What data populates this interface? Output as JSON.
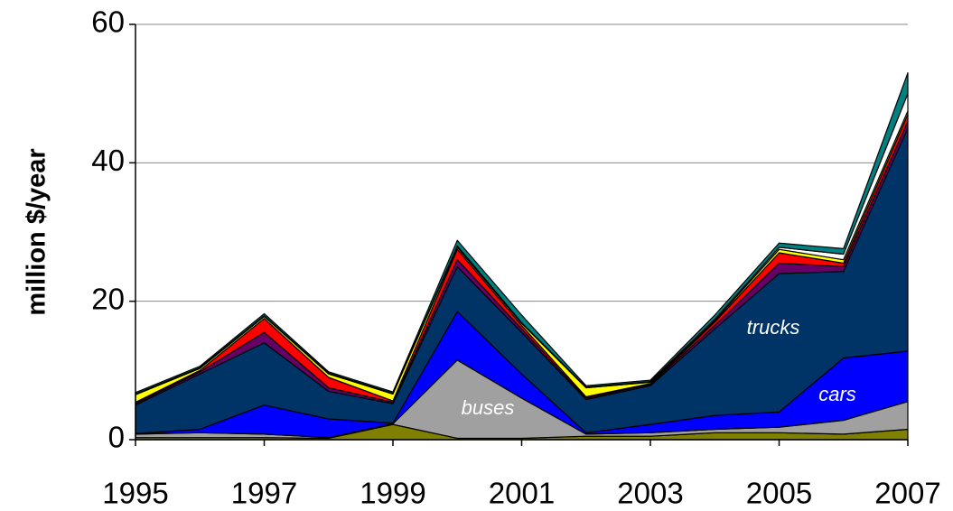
{
  "chart_data": {
    "type": "stacked_area",
    "y_label": "million $/year",
    "x": [
      1995,
      1996,
      1997,
      1998,
      1999,
      2000,
      2001,
      2002,
      2003,
      2004,
      2005,
      2006,
      2007
    ],
    "xlim": [
      1995,
      2007
    ],
    "xticks": [
      1995,
      1997,
      1999,
      2001,
      2003,
      2005,
      2007
    ],
    "ylim": [
      0,
      60
    ],
    "yticks": [
      0,
      20,
      40,
      60
    ],
    "grid": true,
    "series": [
      {
        "color": "#808000",
        "values": [
          0.3,
          0.3,
          0.3,
          0.2,
          2.2,
          0.2,
          0.2,
          0.5,
          0.5,
          1,
          1,
          0.8,
          1.5
        ]
      },
      {
        "name": "buses",
        "color": "#a0a0a0",
        "values": [
          0.5,
          0.7,
          0.5,
          0.1,
          0.1,
          11.3,
          5.8,
          0.3,
          0.5,
          0.5,
          0.8,
          2.0,
          4.0
        ]
      },
      {
        "name": "cars",
        "color": "#0000ff",
        "values": [
          0.1,
          0.5,
          4.2,
          2.7,
          0.1,
          7,
          3.5,
          0.2,
          1.2,
          2,
          2.2,
          9,
          7.3
        ]
      },
      {
        "name": "trucks",
        "color": "#003366",
        "values": [
          4.1,
          8,
          9,
          4,
          2.8,
          6.5,
          6,
          4.8,
          5.6,
          12.5,
          20,
          12.5,
          32.2
        ]
      },
      {
        "color": "#660066",
        "values": [
          0.2,
          0.3,
          1.5,
          0.5,
          0.2,
          1,
          0.5,
          0.2,
          0.2,
          0.5,
          1.5,
          0.7,
          1
        ]
      },
      {
        "color": "#ff0000",
        "values": [
          0.2,
          0.2,
          2,
          1.5,
          0.2,
          1.5,
          0.5,
          0.2,
          0.1,
          0.5,
          1.5,
          0.5,
          1
        ]
      },
      {
        "color": "#ffff00",
        "values": [
          1.1,
          0.3,
          0.3,
          0.5,
          1,
          0.3,
          0.3,
          1.3,
          0.2,
          0.2,
          0.5,
          0.5,
          0.5
        ]
      },
      {
        "color": "#ffffff",
        "values": [
          0.1,
          0.1,
          0.1,
          0.1,
          0.1,
          0.2,
          0.1,
          0.1,
          0.1,
          0.2,
          0.3,
          0.8,
          2.5
        ]
      },
      {
        "color": "#008080",
        "values": [
          0.2,
          0.2,
          0.3,
          0.2,
          0.2,
          0.8,
          1.1,
          0.2,
          0.2,
          0.6,
          0.6,
          0.8,
          3
        ]
      }
    ]
  }
}
